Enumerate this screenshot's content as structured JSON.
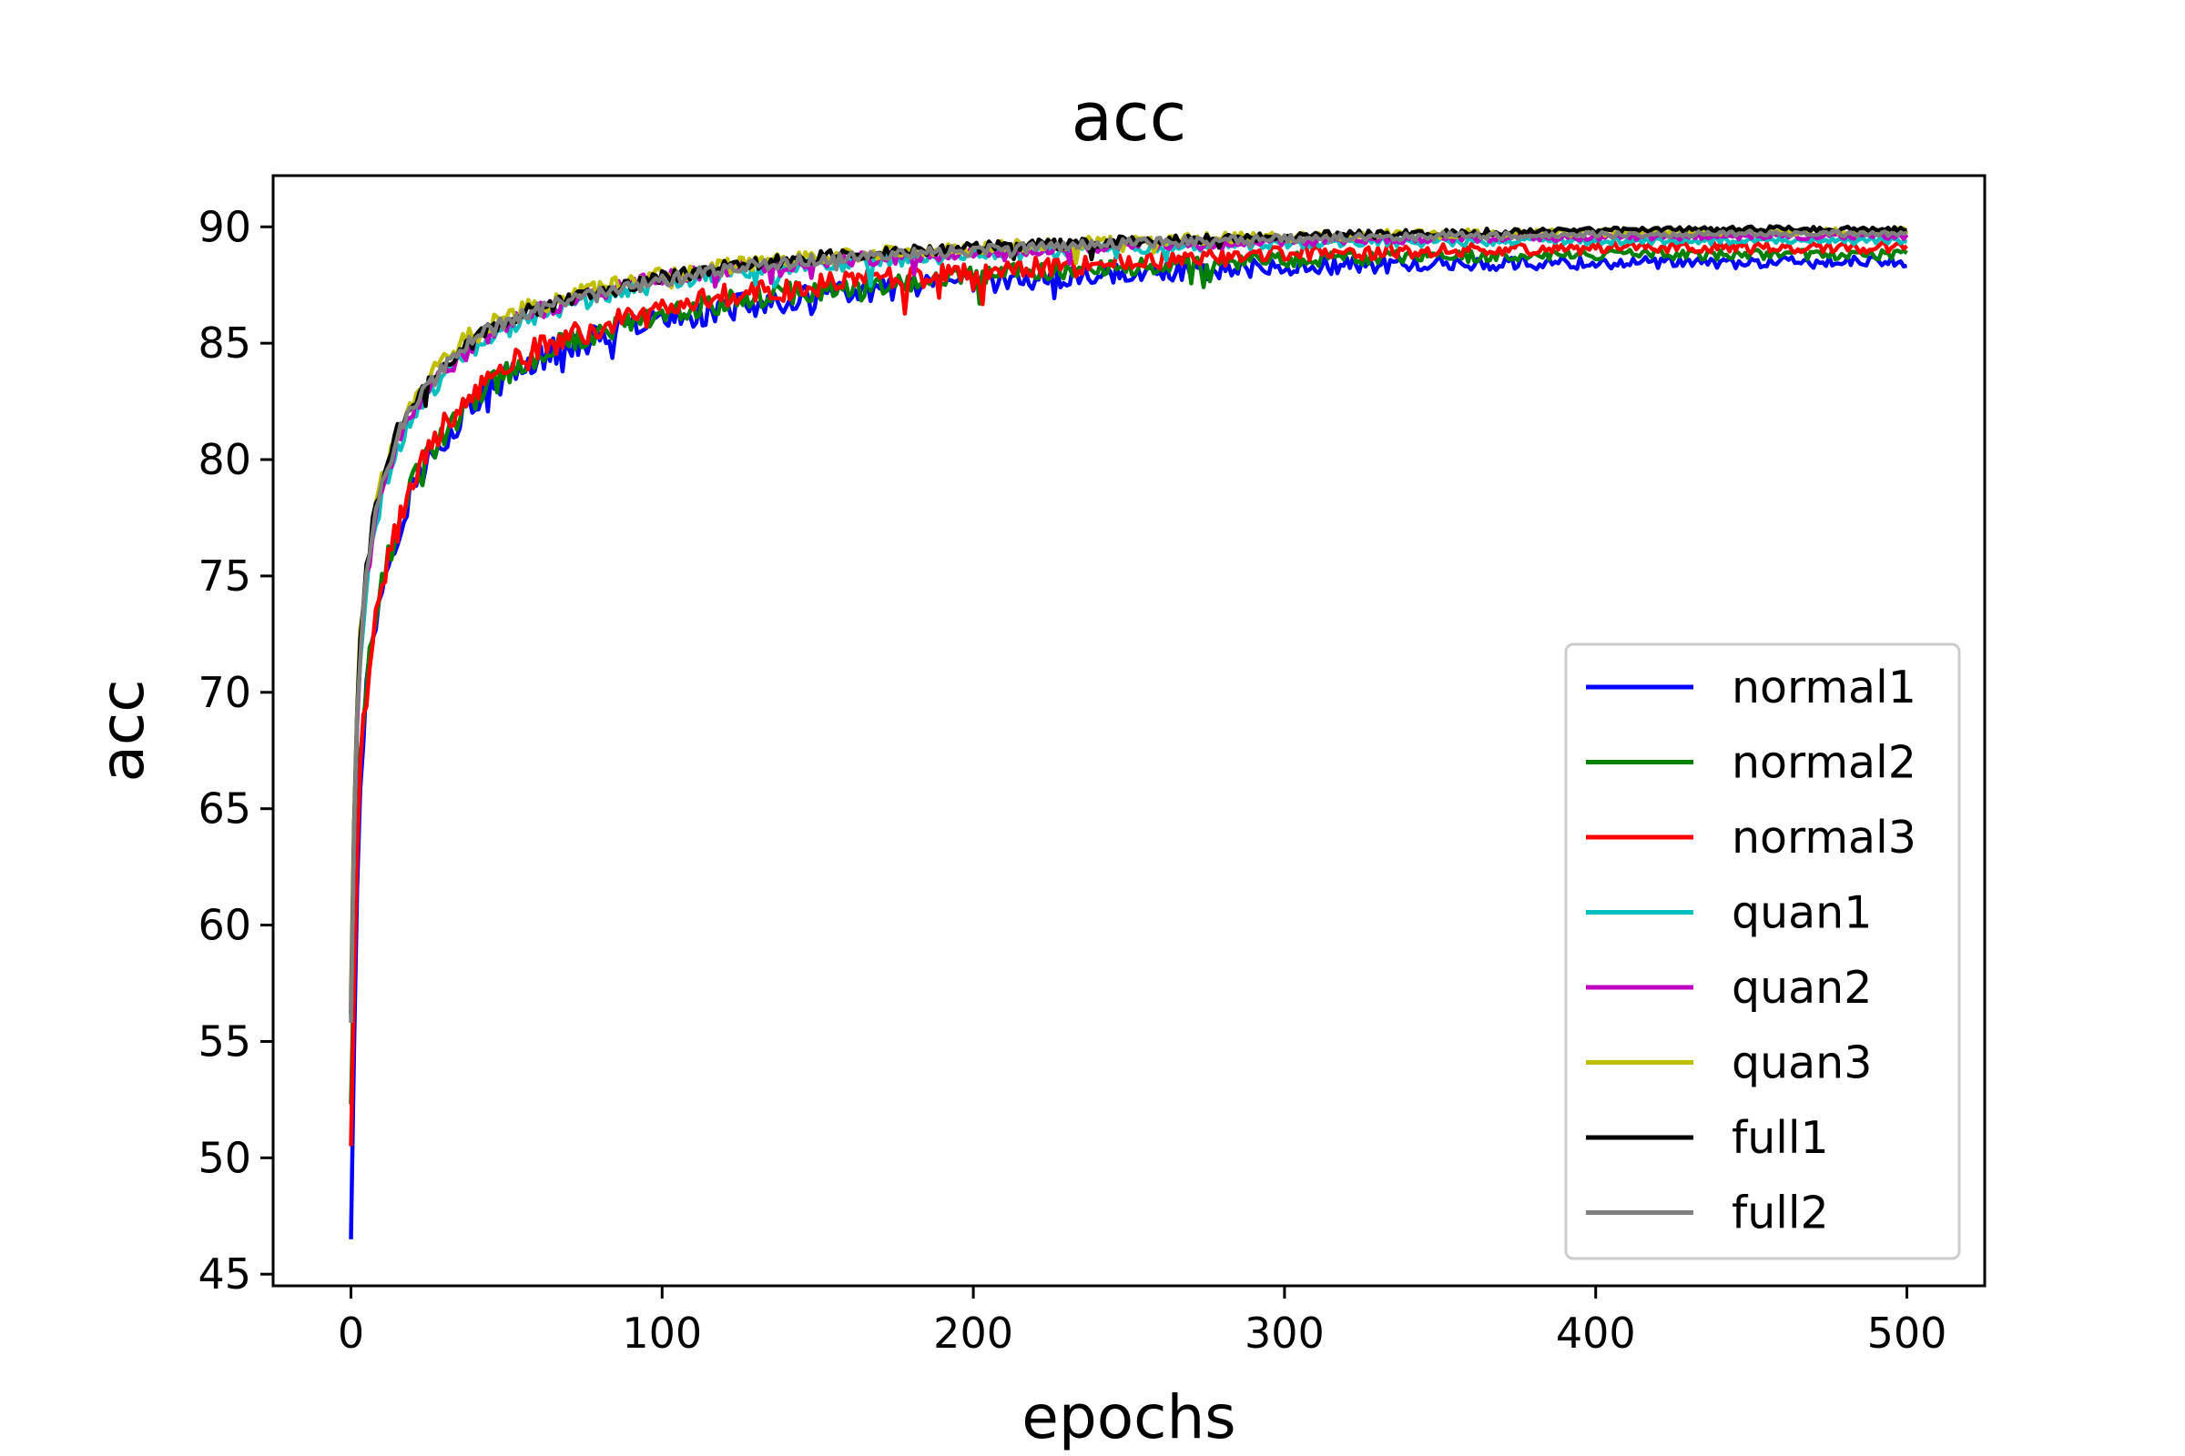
{
  "chart_data": {
    "type": "line",
    "title": "acc",
    "xlabel": "epochs",
    "ylabel": "acc",
    "xlim": [
      -25,
      525
    ],
    "ylim": [
      44.5,
      92.2
    ],
    "xticks": [
      0,
      100,
      200,
      300,
      400,
      500
    ],
    "yticks": [
      45,
      50,
      55,
      60,
      65,
      70,
      75,
      80,
      85,
      90
    ],
    "grid": false,
    "legend_position": "lower-right",
    "x_epochs": [
      0,
      1,
      2,
      3,
      5,
      7,
      10,
      15,
      20,
      25,
      30,
      40,
      50,
      60,
      70,
      80,
      100,
      120,
      150,
      200,
      250,
      300,
      350,
      400,
      450,
      500
    ],
    "series": [
      {
        "name": "normal1",
        "color": "#0000ff",
        "noise": 0.7,
        "values": [
          46.5,
          55.0,
          62.0,
          66.5,
          70.0,
          72.5,
          74.5,
          77.0,
          78.8,
          80.0,
          81.0,
          82.5,
          83.5,
          84.3,
          84.9,
          85.3,
          86.0,
          86.5,
          87.0,
          87.6,
          88.0,
          88.3,
          88.4,
          88.45,
          88.45,
          88.5
        ]
      },
      {
        "name": "normal2",
        "color": "#008000",
        "noise": 0.6,
        "values": [
          52.3,
          58.5,
          63.5,
          67.0,
          70.3,
          72.7,
          74.7,
          77.2,
          79.0,
          80.2,
          81.2,
          82.7,
          83.7,
          84.5,
          85.1,
          85.5,
          86.2,
          86.8,
          87.3,
          87.9,
          88.3,
          88.6,
          88.75,
          88.8,
          88.8,
          88.8
        ]
      },
      {
        "name": "normal3",
        "color": "#ff0000",
        "noise": 0.65,
        "values": [
          50.5,
          57.5,
          63.0,
          66.8,
          70.2,
          72.6,
          74.6,
          77.1,
          79.0,
          80.3,
          81.4,
          82.9,
          83.9,
          84.7,
          85.3,
          85.7,
          86.4,
          87.0,
          87.5,
          88.1,
          88.5,
          88.8,
          89.0,
          89.1,
          89.1,
          89.1
        ]
      },
      {
        "name": "quan1",
        "color": "#00bfbf",
        "noise": 0.4,
        "values": [
          56.0,
          63.5,
          68.5,
          71.5,
          74.5,
          76.5,
          78.5,
          80.5,
          81.8,
          82.8,
          83.6,
          84.8,
          85.6,
          86.2,
          86.6,
          87.0,
          87.6,
          88.0,
          88.4,
          88.8,
          89.1,
          89.3,
          89.35,
          89.4,
          89.4,
          89.4
        ]
      },
      {
        "name": "quan2",
        "color": "#bf00bf",
        "noise": 0.4,
        "values": [
          56.5,
          64.0,
          69.0,
          72.0,
          74.8,
          76.8,
          78.8,
          80.8,
          82.0,
          83.0,
          83.8,
          85.0,
          85.8,
          86.4,
          86.8,
          87.2,
          87.8,
          88.2,
          88.5,
          88.9,
          89.2,
          89.4,
          89.5,
          89.55,
          89.6,
          89.6
        ]
      },
      {
        "name": "quan3",
        "color": "#bfbf00",
        "noise": 0.4,
        "values": [
          57.0,
          64.5,
          69.5,
          72.5,
          75.3,
          77.3,
          79.2,
          81.2,
          82.5,
          83.5,
          84.3,
          85.5,
          86.2,
          86.7,
          87.1,
          87.4,
          87.9,
          88.3,
          88.7,
          89.1,
          89.4,
          89.6,
          89.7,
          89.75,
          89.8,
          89.8
        ]
      },
      {
        "name": "full1",
        "color": "#000000",
        "noise": 0.35,
        "values": [
          56.2,
          64.0,
          69.2,
          72.3,
          75.2,
          77.2,
          79.2,
          81.2,
          82.4,
          83.4,
          84.1,
          85.3,
          86.0,
          86.5,
          86.9,
          87.2,
          87.8,
          88.3,
          88.7,
          89.1,
          89.4,
          89.6,
          89.75,
          89.85,
          89.9,
          89.9
        ]
      },
      {
        "name": "full2",
        "color": "#808080",
        "noise": 0.35,
        "values": [
          55.8,
          63.8,
          69.0,
          72.2,
          75.0,
          77.0,
          79.0,
          81.0,
          82.2,
          83.2,
          84.0,
          85.2,
          85.9,
          86.4,
          86.8,
          87.1,
          87.7,
          88.2,
          88.6,
          89.0,
          89.3,
          89.5,
          89.6,
          89.65,
          89.7,
          89.7
        ]
      }
    ]
  }
}
